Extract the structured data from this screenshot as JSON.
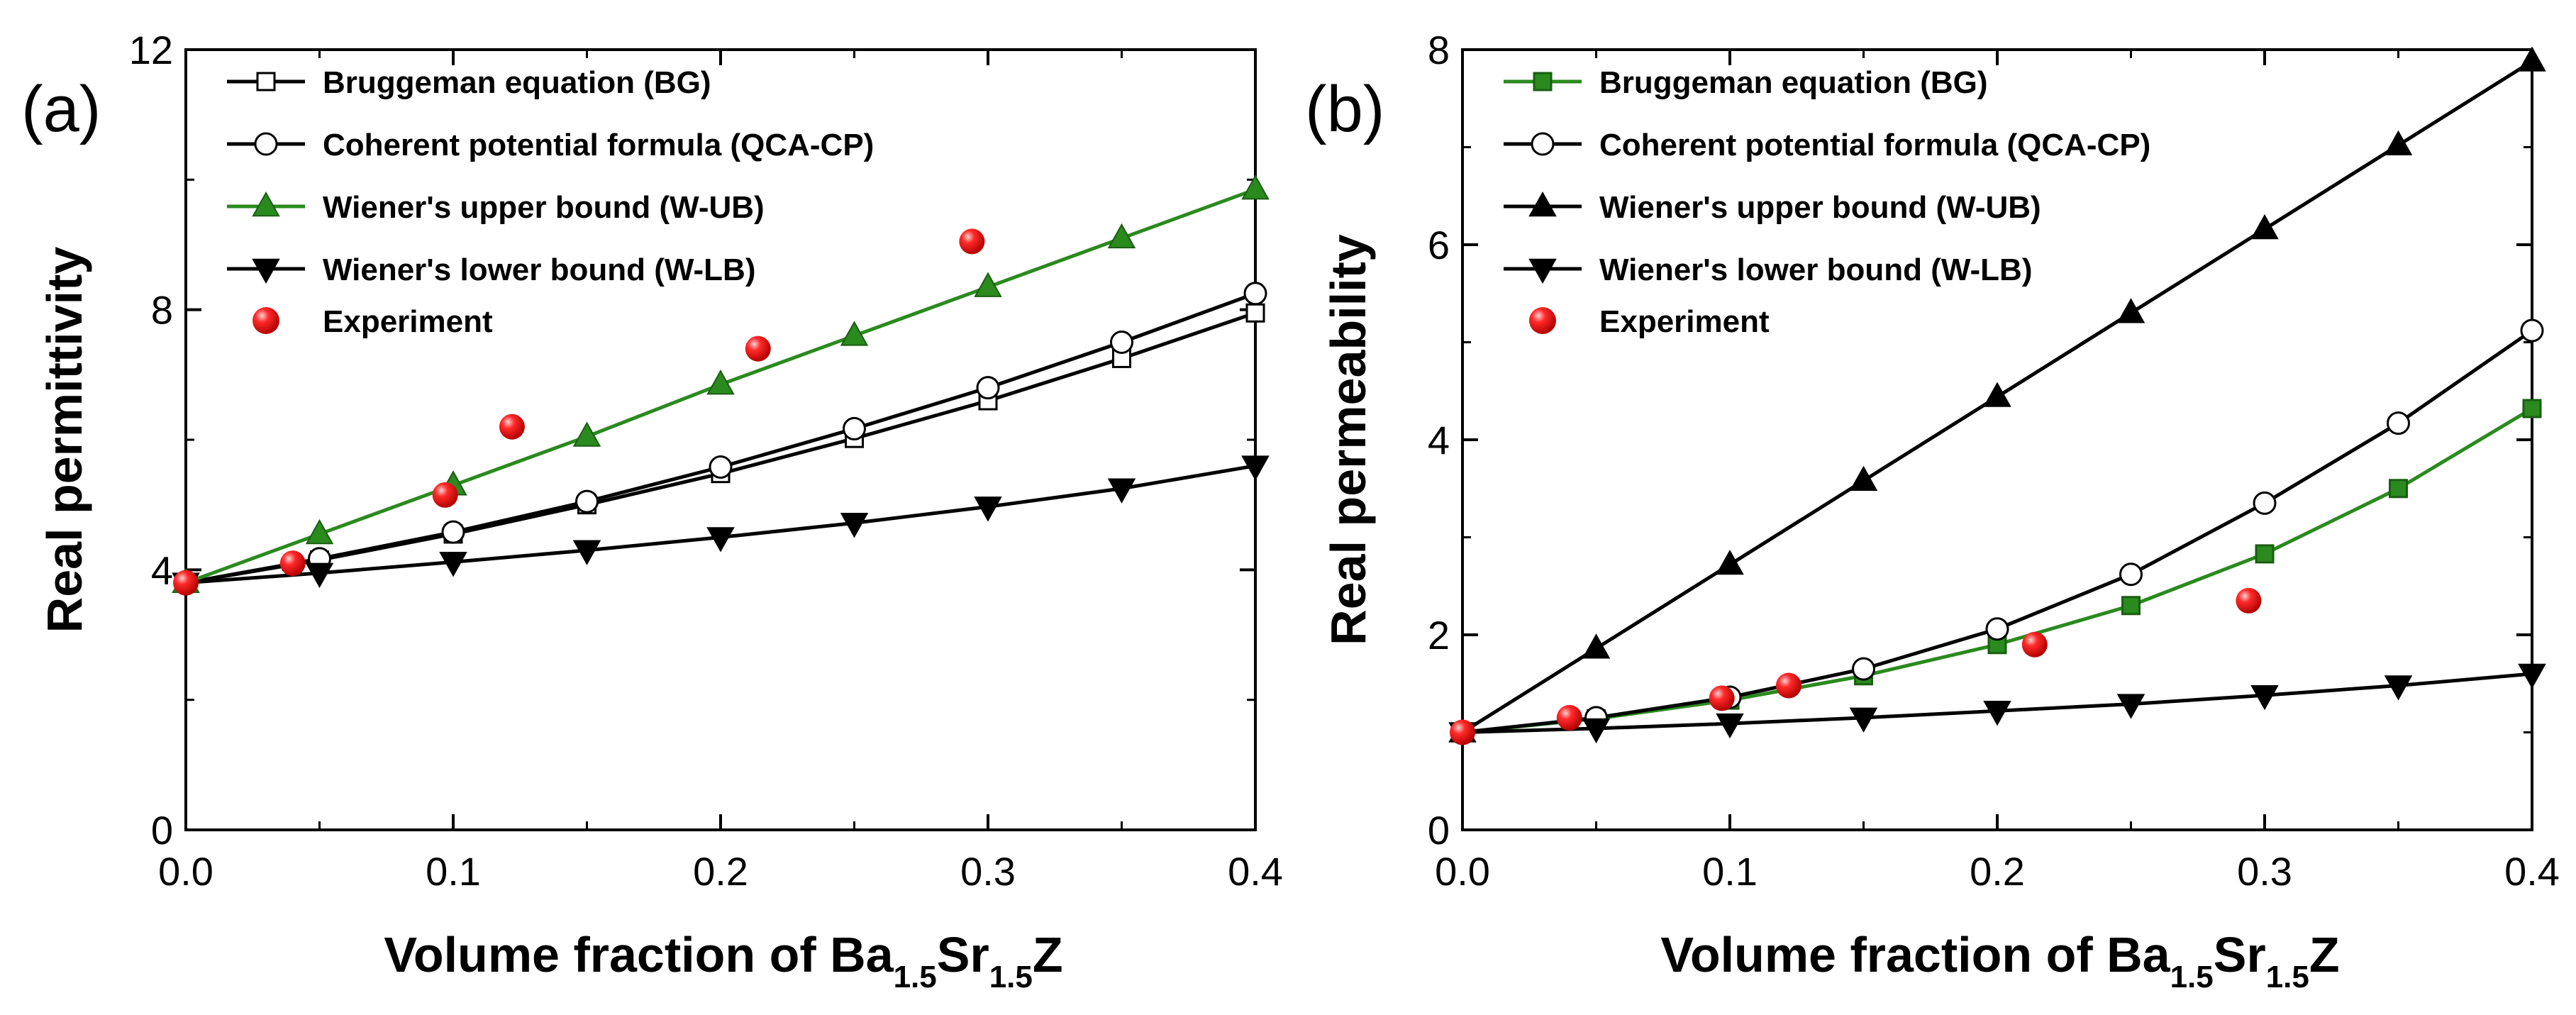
{
  "chart_data": [
    {
      "type": "line",
      "panel_label": "(a)",
      "xlabel": {
        "main": "Volume fraction of Ba",
        "sub1": "1.5",
        "mid": "Sr",
        "sub2": "1.5",
        "end": "Z"
      },
      "ylabel": "Real permittivity",
      "xlim": [
        0.0,
        0.4
      ],
      "ylim": [
        0,
        12
      ],
      "xticks": [
        "0.0",
        "0.1",
        "0.2",
        "0.3",
        "0.4"
      ],
      "yticks": [
        "0",
        "4",
        "8",
        "12"
      ],
      "series": [
        {
          "name": "Bruggeman equation (BG)",
          "marker": "square-open",
          "color": "#000000",
          "x": [
            0,
            0.05,
            0.1,
            0.15,
            0.2,
            0.25,
            0.3,
            0.35,
            0.4
          ],
          "values": [
            3.8,
            4.15,
            4.55,
            5.0,
            5.48,
            6.02,
            6.6,
            7.25,
            7.95
          ]
        },
        {
          "name": "Coherent potential formula (QCA-CP)",
          "marker": "circle-open",
          "color": "#000000",
          "x": [
            0,
            0.05,
            0.1,
            0.15,
            0.2,
            0.25,
            0.3,
            0.35,
            0.4
          ],
          "values": [
            3.8,
            4.17,
            4.58,
            5.05,
            5.58,
            6.17,
            6.8,
            7.5,
            8.25
          ]
        },
        {
          "name": "Wiener's upper bound (W-UB)",
          "marker": "triangle-up",
          "color": "#2a8a1e",
          "x": [
            0,
            0.05,
            0.1,
            0.15,
            0.2,
            0.25,
            0.3,
            0.35,
            0.4
          ],
          "values": [
            3.8,
            4.55,
            5.3,
            6.05,
            6.85,
            7.6,
            8.35,
            9.1,
            9.85
          ]
        },
        {
          "name": "Wiener's lower bound (W-LB)",
          "marker": "triangle-down",
          "color": "#000000",
          "x": [
            0,
            0.05,
            0.1,
            0.15,
            0.2,
            0.25,
            0.3,
            0.35,
            0.4
          ],
          "values": [
            3.8,
            3.95,
            4.12,
            4.3,
            4.5,
            4.72,
            4.97,
            5.25,
            5.6
          ]
        }
      ],
      "experiment": {
        "name": "Experiment",
        "color": "#e8141b",
        "x": [
          0,
          0.04,
          0.097,
          0.122,
          0.214,
          0.294
        ],
        "values": [
          3.8,
          4.1,
          5.15,
          6.2,
          7.4,
          9.05
        ]
      }
    },
    {
      "type": "line",
      "panel_label": "(b)",
      "xlabel": {
        "main": "Volume fraction of Ba",
        "sub1": "1.5",
        "mid": "Sr",
        "sub2": "1.5",
        "end": "Z"
      },
      "ylabel": "Real permeability",
      "xlim": [
        0.0,
        0.4
      ],
      "ylim": [
        0,
        8
      ],
      "xticks": [
        "0.0",
        "0.1",
        "0.2",
        "0.3",
        "0.4"
      ],
      "yticks": [
        "0",
        "2",
        "4",
        "6",
        "8"
      ],
      "series": [
        {
          "name": "Bruggeman equation (BG)",
          "marker": "square-filled",
          "color": "#2a8a1e",
          "x": [
            0,
            0.05,
            0.1,
            0.15,
            0.2,
            0.25,
            0.3,
            0.35,
            0.4
          ],
          "values": [
            1.0,
            1.14,
            1.33,
            1.58,
            1.9,
            2.3,
            2.83,
            3.5,
            4.32
          ]
        },
        {
          "name": "Coherent potential formula (QCA-CP)",
          "marker": "circle-open",
          "color": "#000000",
          "x": [
            0,
            0.05,
            0.1,
            0.15,
            0.2,
            0.25,
            0.3,
            0.35,
            0.4
          ],
          "values": [
            1.0,
            1.15,
            1.36,
            1.65,
            2.06,
            2.62,
            3.35,
            4.17,
            5.12
          ]
        },
        {
          "name": "Wiener's upper bound (W-UB)",
          "marker": "triangle-up",
          "color": "#000000",
          "x": [
            0,
            0.05,
            0.1,
            0.15,
            0.2,
            0.25,
            0.3,
            0.35,
            0.4
          ],
          "values": [
            1.0,
            1.86,
            2.72,
            3.58,
            4.44,
            5.3,
            6.16,
            7.02,
            7.88
          ]
        },
        {
          "name": "Wiener's lower bound (W-LB)",
          "marker": "triangle-down",
          "color": "#000000",
          "x": [
            0,
            0.05,
            0.1,
            0.15,
            0.2,
            0.25,
            0.3,
            0.35,
            0.4
          ],
          "values": [
            1.0,
            1.04,
            1.09,
            1.15,
            1.22,
            1.29,
            1.38,
            1.48,
            1.6
          ]
        }
      ],
      "experiment": {
        "name": "Experiment",
        "color": "#e8141b",
        "x": [
          0,
          0.04,
          0.097,
          0.122,
          0.214,
          0.294
        ],
        "values": [
          1.0,
          1.15,
          1.35,
          1.48,
          1.9,
          2.35
        ]
      }
    }
  ]
}
